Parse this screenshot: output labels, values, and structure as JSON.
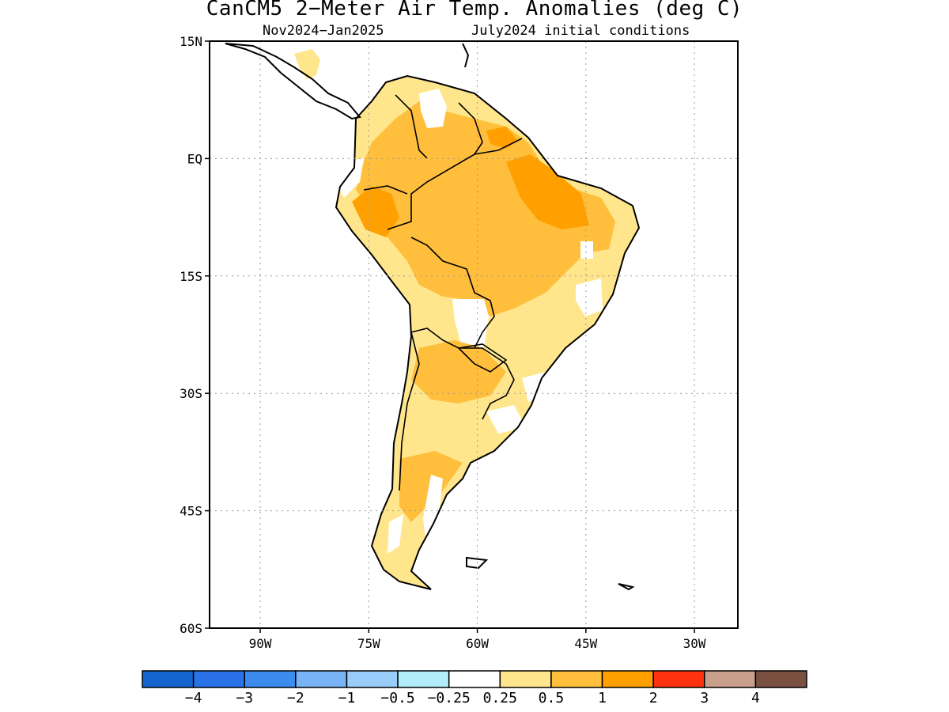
{
  "title": "CanCM5 2−Meter Air Temp. Anomalies (deg C)",
  "subtitle_left": "Nov2024−Jan2025",
  "subtitle_right": "July2024 initial conditions",
  "map": {
    "lon_range": [
      -97,
      -24
    ],
    "lat_range": [
      -60,
      15
    ],
    "lat_ticks": [
      {
        "value": 15,
        "label": "15N"
      },
      {
        "value": 0,
        "label": "EQ"
      },
      {
        "value": -15,
        "label": "15S"
      },
      {
        "value": -30,
        "label": "30S"
      },
      {
        "value": -45,
        "label": "45S"
      },
      {
        "value": -60,
        "label": "60S"
      }
    ],
    "lon_ticks": [
      {
        "value": -90,
        "label": "90W"
      },
      {
        "value": -75,
        "label": "75W"
      },
      {
        "value": -60,
        "label": "60W"
      },
      {
        "value": -45,
        "label": "45W"
      },
      {
        "value": -30,
        "label": "30W"
      }
    ],
    "grid": "dotted"
  },
  "colorbar": {
    "colors": [
      "#1565d0",
      "#2a72e8",
      "#3c8cf0",
      "#78b4f5",
      "#99ccf8",
      "#b2eefa",
      "#ffffff",
      "#ffe68c",
      "#ffbe3c",
      "#ffa000",
      "#ff3210",
      "#c8a08c",
      "#7a5040"
    ],
    "labels": [
      "−4",
      "−3",
      "−2",
      "−1",
      "−0.5",
      "−0.25",
      "0.25",
      "0.5",
      "1",
      "2",
      "3",
      "4"
    ]
  },
  "legend_colors": {
    "c05": "#ffe68c",
    "c1": "#ffbe3c",
    "c2": "#ffa000"
  }
}
